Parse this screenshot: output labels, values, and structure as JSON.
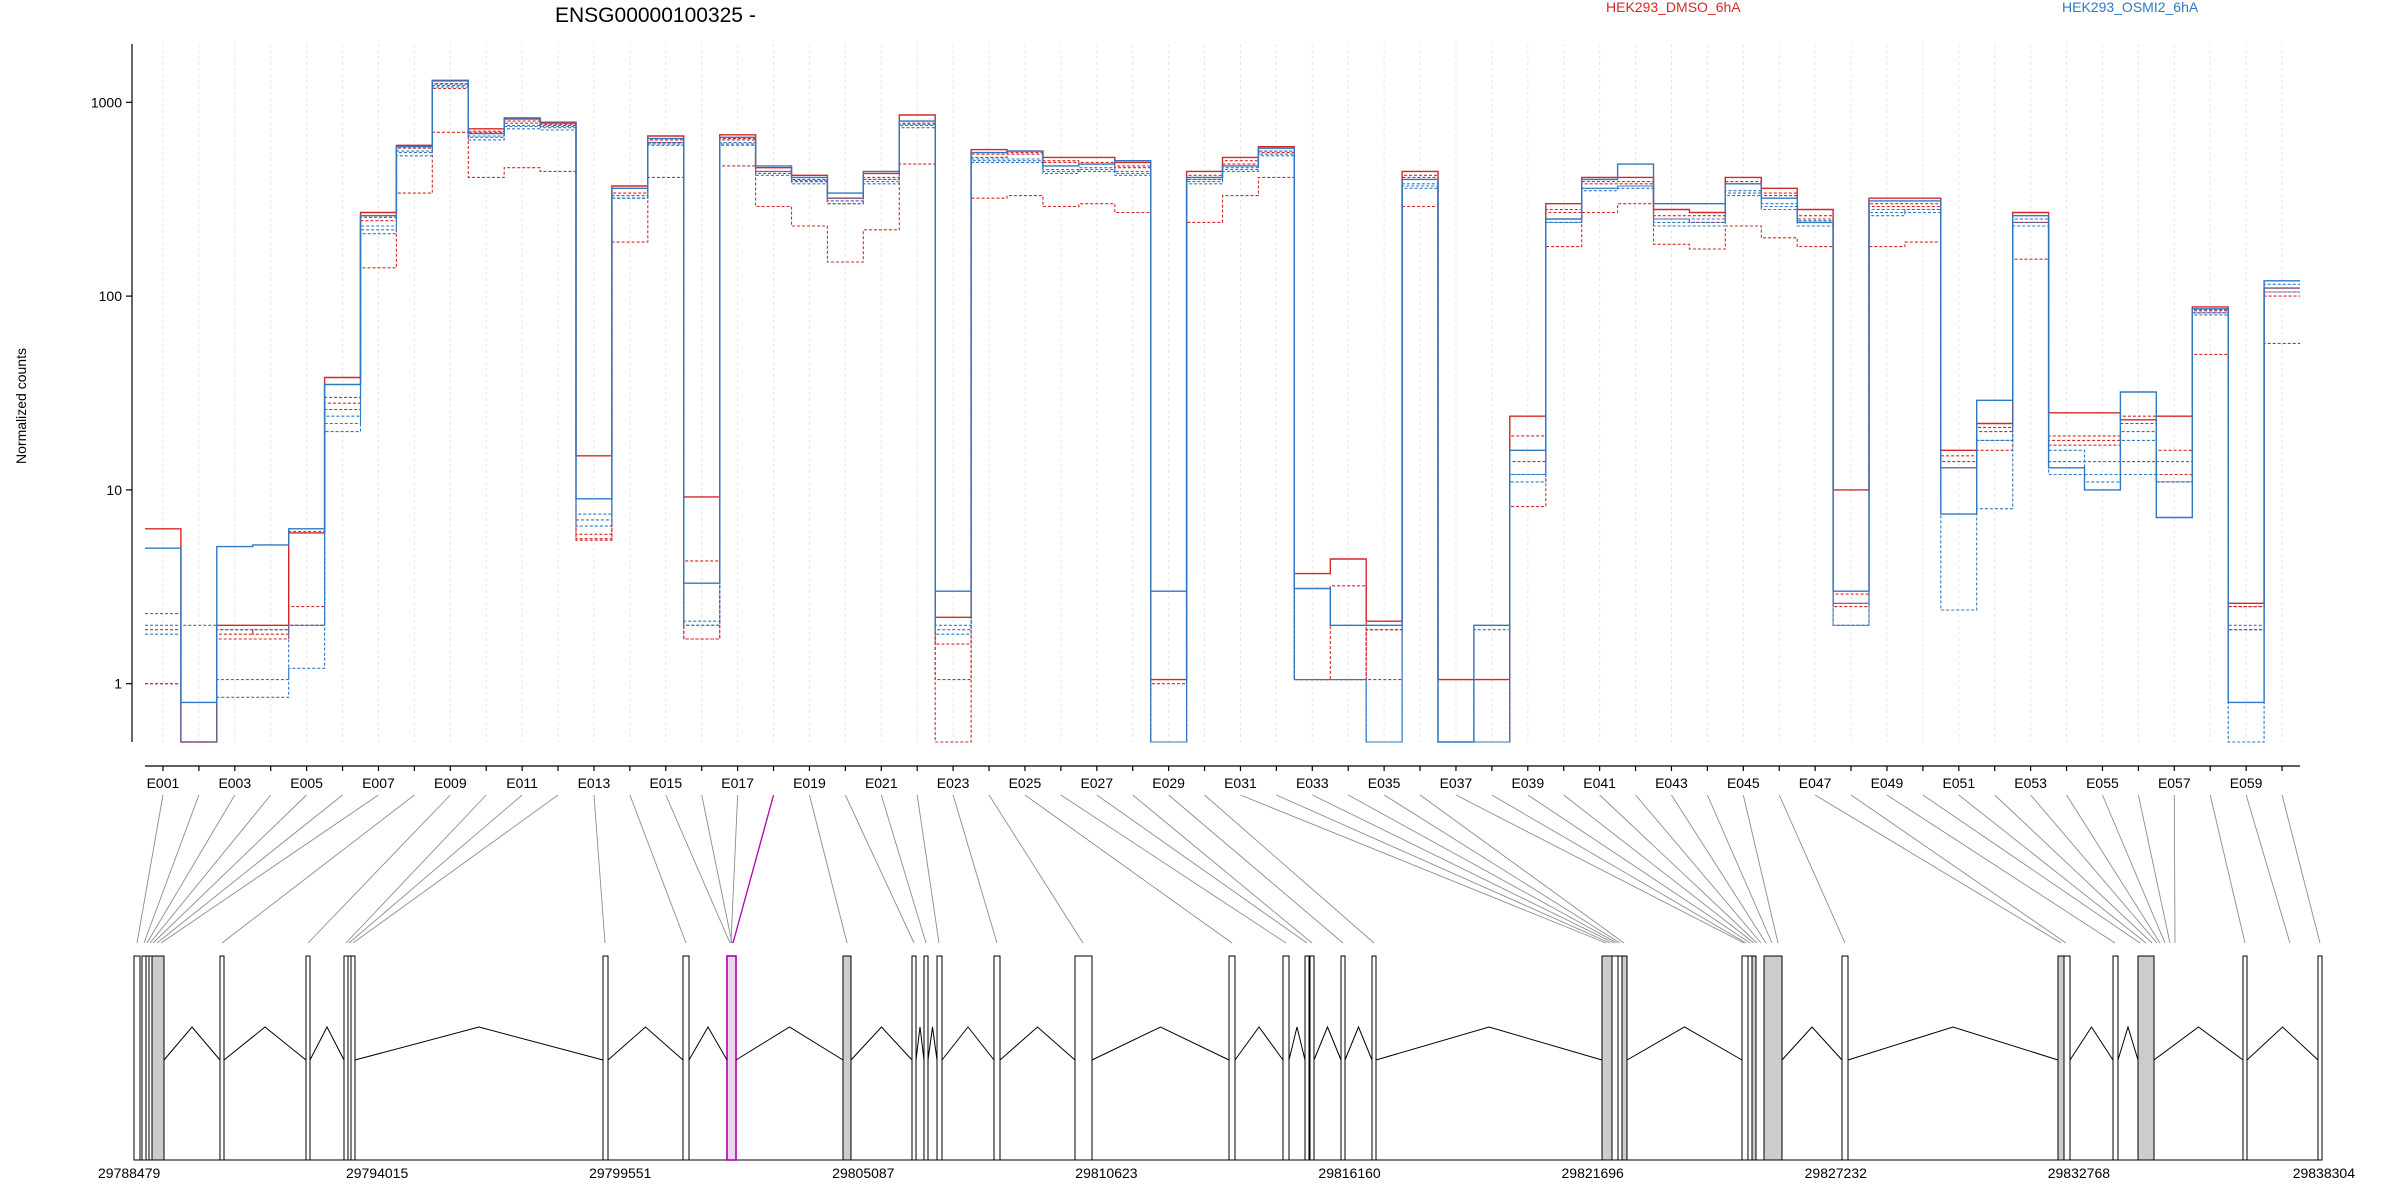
{
  "title": "ENSG00000100325 -",
  "colors": {
    "HEK293_DMSO_6hA": "#d62728",
    "HEK293_OSMI2_6hA": "#2f78c4"
  },
  "legend": [
    {
      "label": "HEK293_DMSO_6hA",
      "color": "#d62728"
    },
    {
      "label": "HEK293_OSMI2_6hA",
      "color": "#2f78c4"
    }
  ],
  "chart_data": {
    "type": "line",
    "scale": "log",
    "ylabel": "Normalized counts",
    "ylim": [
      0.5,
      2000
    ],
    "yticks": [
      1,
      10,
      100,
      1000
    ],
    "ytick_labels": [
      "1",
      "10",
      "100",
      "1000"
    ],
    "grid": "vertical dashed",
    "highlight_exon": "E018",
    "highlight_color": "#b000b0",
    "exons": [
      "E001",
      "E002",
      "E003",
      "E004",
      "E005",
      "E006",
      "E007",
      "E008",
      "E009",
      "E010",
      "E011",
      "E012",
      "E013",
      "E014",
      "E015",
      "E016",
      "E017",
      "E018",
      "E019",
      "E020",
      "E021",
      "E022",
      "E023",
      "E024",
      "E025",
      "E026",
      "E027",
      "E028",
      "E029",
      "E030",
      "E031",
      "E032",
      "E033",
      "E034",
      "E035",
      "E036",
      "E037",
      "E038",
      "E039",
      "E040",
      "E041",
      "E042",
      "E043",
      "E044",
      "E045",
      "E046",
      "E047",
      "E048",
      "E049",
      "E050",
      "E051",
      "E052",
      "E053",
      "E054",
      "E055",
      "E056",
      "E057",
      "E058",
      "E059",
      "E060"
    ],
    "exon_tick_labels": [
      "E001",
      "E003",
      "E005",
      "E007",
      "E009",
      "E011",
      "E013",
      "E015",
      "E017",
      "E019",
      "E021",
      "E023",
      "E025",
      "E027",
      "E029",
      "E031",
      "E033",
      "E035",
      "E037",
      "E039",
      "E041",
      "E043",
      "E045",
      "E047",
      "E049",
      "E051",
      "E053",
      "E055",
      "E057",
      "E059"
    ],
    "series": [
      {
        "name": "HEK293_DMSO_6hA",
        "color": "#d62728",
        "values": [
          6.3,
          0.5,
          2.0,
          2.0,
          6.0,
          38,
          270,
          600,
          1300,
          730,
          830,
          790,
          15,
          370,
          670,
          9.2,
          680,
          460,
          420,
          320,
          430,
          860,
          2.2,
          570,
          560,
          520,
          520,
          490,
          1.05,
          440,
          520,
          590,
          3.7,
          4.4,
          2.1,
          440,
          1.05,
          1.05,
          24,
          300,
          410,
          410,
          280,
          270,
          410,
          360,
          280,
          10,
          320,
          320,
          16,
          22,
          270,
          25,
          25,
          23,
          24,
          88,
          2.6,
          110
        ]
      },
      {
        "name": "HEK293_DMSO_6hA",
        "color": "#d62728",
        "values": [
          1.0,
          0.5,
          1.8,
          1.9,
          2.5,
          26,
          245,
          580,
          1180,
          700,
          780,
          760,
          5.6,
          330,
          620,
          4.3,
          650,
          430,
          390,
          300,
          400,
          780,
          1.6,
          540,
          540,
          490,
          480,
          460,
          1.0,
          420,
          480,
          560,
          1.05,
          3.2,
          1.05,
          420,
          0.5,
          0.5,
          19,
          280,
          390,
          390,
          260,
          260,
          380,
          330,
          260,
          2.9,
          300,
          300,
          14,
          21,
          250,
          19,
          19,
          22,
          16,
          84,
          2.5,
          105
        ]
      },
      {
        "name": "HEK293_DMSO_6hA",
        "color": "#d62728",
        "values": [
          1.9,
          0.5,
          1.9,
          1.8,
          6.1,
          30,
          255,
          590,
          1250,
          710,
          800,
          770,
          5.9,
          340,
          640,
          1.7,
          640,
          440,
          400,
          310,
          410,
          800,
          1.05,
          520,
          550,
          500,
          490,
          470,
          0.5,
          400,
          500,
          550,
          1.05,
          1.05,
          1.9,
          410,
          0.5,
          0.5,
          14,
          270,
          380,
          380,
          250,
          240,
          390,
          340,
          250,
          2.6,
          290,
          290,
          13,
          20,
          240,
          18,
          18,
          24,
          12,
          82,
          2.5,
          100
        ]
      },
      {
        "name": "HEK293_DMSO_6hA",
        "color": "#d62728",
        "values": [
          1.0,
          0.5,
          1.7,
          1.7,
          2.0,
          28,
          140,
          340,
          700,
          410,
          460,
          440,
          5.5,
          190,
          410,
          1.7,
          470,
          290,
          230,
          150,
          220,
          480,
          0.5,
          320,
          330,
          290,
          300,
          270,
          0.5,
          240,
          330,
          410,
          1.05,
          1.05,
          1.9,
          290,
          1.05,
          0.5,
          8.2,
          180,
          270,
          300,
          185,
          175,
          230,
          200,
          180,
          2.5,
          180,
          190,
          15,
          16,
          155,
          17,
          17,
          14,
          11,
          50,
          1.9,
          57
        ]
      },
      {
        "name": "HEK293_OSMI2_6hA",
        "color": "#2f78c4",
        "values": [
          5.0,
          0.8,
          5.1,
          5.2,
          6.3,
          35,
          260,
          590,
          1290,
          690,
          820,
          780,
          9.0,
          360,
          650,
          3.3,
          660,
          470,
          410,
          340,
          440,
          800,
          3.0,
          550,
          560,
          470,
          480,
          500,
          3.0,
          410,
          470,
          580,
          3.1,
          2.0,
          2.0,
          400,
          0.5,
          2.0,
          16,
          250,
          400,
          480,
          300,
          300,
          380,
          320,
          240,
          3.0,
          310,
          310,
          7.5,
          29,
          260,
          13,
          10,
          32,
          7.2,
          86,
          0.8,
          120
        ]
      },
      {
        "name": "HEK293_OSMI2_6hA",
        "color": "#2f78c4",
        "values": [
          2.3,
          2.0,
          0.85,
          0.85,
          1.2,
          20,
          210,
          530,
          1200,
          640,
          730,
          720,
          7.0,
          330,
          600,
          2.0,
          620,
          420,
          380,
          300,
          380,
          740,
          2.0,
          490,
          490,
          430,
          440,
          420,
          0.5,
          380,
          440,
          530,
          1.05,
          1.05,
          0.5,
          380,
          0.5,
          0.5,
          12,
          240,
          360,
          370,
          230,
          230,
          330,
          280,
          230,
          2.0,
          280,
          280,
          2.4,
          8.0,
          230,
          12,
          11,
          12,
          14,
          80,
          0.5,
          105
        ]
      },
      {
        "name": "HEK293_OSMI2_6hA",
        "color": "#2f78c4",
        "values": [
          2.0,
          0.5,
          1.05,
          1.05,
          2.0,
          22,
          220,
          550,
          1220,
          660,
          750,
          740,
          6.5,
          320,
          610,
          2.0,
          600,
          430,
          390,
          310,
          390,
          760,
          1.8,
          500,
          500,
          440,
          450,
          430,
          0.5,
          390,
          450,
          540,
          1.05,
          1.05,
          0.5,
          370,
          0.5,
          1.9,
          12,
          240,
          350,
          360,
          240,
          240,
          340,
          290,
          240,
          2.0,
          260,
          270,
          13,
          18,
          240,
          14,
          14,
          18,
          11,
          82,
          1.9,
          110
        ]
      },
      {
        "name": "HEK293_OSMI2_6hA",
        "color": "#2f78c4",
        "values": [
          1.8,
          0.5,
          1.9,
          1.9,
          2.0,
          24,
          230,
          560,
          1240,
          670,
          760,
          750,
          7.5,
          320,
          620,
          2.1,
          610,
          440,
          395,
          320,
          400,
          770,
          1.9,
          510,
          510,
          450,
          460,
          440,
          0.5,
          400,
          460,
          560,
          1.05,
          1.05,
          0.5,
          360,
          0.5,
          0.5,
          11,
          250,
          360,
          370,
          250,
          250,
          350,
          300,
          245,
          2.6,
          270,
          280,
          13,
          18,
          250,
          16,
          12,
          20,
          11,
          85,
          2.0,
          115
        ]
      }
    ],
    "genomic_coordinates": [
      "29788479",
      "29794015",
      "29799551",
      "29805087",
      "29810623",
      "29816160",
      "29821696",
      "29827232",
      "29832768",
      "29838304"
    ]
  }
}
